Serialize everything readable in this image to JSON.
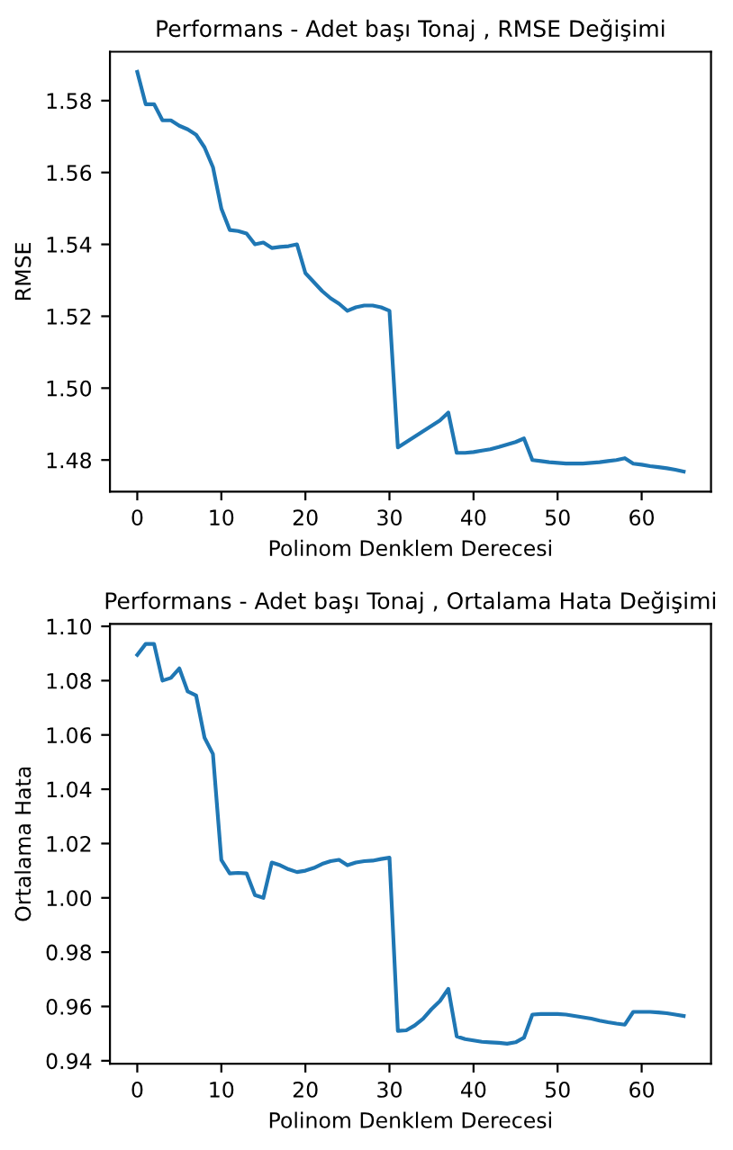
{
  "chart_data": [
    {
      "type": "line",
      "title": "Performans - Adet başı Tonaj , RMSE Değişimi",
      "xlabel": "Polinom Denklem Derecesi",
      "ylabel": "RMSE",
      "x": [
        0,
        1,
        2,
        3,
        4,
        5,
        6,
        7,
        8,
        9,
        10,
        11,
        12,
        13,
        14,
        15,
        16,
        17,
        18,
        19,
        20,
        21,
        22,
        23,
        24,
        25,
        26,
        27,
        28,
        29,
        30,
        31,
        32,
        33,
        34,
        35,
        36,
        37,
        38,
        39,
        40,
        41,
        42,
        43,
        44,
        45,
        46,
        47,
        48,
        49,
        50,
        51,
        52,
        53,
        54,
        55,
        56,
        57,
        58,
        59,
        60,
        61,
        62,
        63,
        64,
        65
      ],
      "series": [
        {
          "color": "#1f77b4",
          "values": [
            1.588,
            1.579,
            1.579,
            1.5745,
            1.5745,
            1.573,
            1.572,
            1.5705,
            1.567,
            1.5615,
            1.55,
            1.544,
            1.5437,
            1.543,
            1.54,
            1.5405,
            1.539,
            1.5393,
            1.5395,
            1.54,
            1.532,
            1.5295,
            1.527,
            1.525,
            1.5235,
            1.5215,
            1.5225,
            1.523,
            1.523,
            1.5225,
            1.5215,
            1.4835,
            1.485,
            1.4865,
            1.488,
            1.4895,
            1.491,
            1.4932,
            1.482,
            1.482,
            1.4822,
            1.4826,
            1.483,
            1.4836,
            1.4843,
            1.485,
            1.486,
            1.48,
            1.4797,
            1.4794,
            1.4792,
            1.479,
            1.479,
            1.479,
            1.4792,
            1.4794,
            1.4797,
            1.48,
            1.4805,
            1.479,
            1.4787,
            1.4783,
            1.478,
            1.4777,
            1.4773,
            1.4768
          ]
        }
      ],
      "xlim": [
        -3.25,
        68.25
      ],
      "xticks": [
        0,
        10,
        20,
        30,
        40,
        50,
        60
      ],
      "ylim": [
        1.4712,
        1.5936
      ],
      "yticks": [
        {
          "value": 1.48,
          "label": "1.48"
        },
        {
          "value": 1.5,
          "label": "1.50"
        },
        {
          "value": 1.52,
          "label": "1.52"
        },
        {
          "value": 1.54,
          "label": "1.54"
        },
        {
          "value": 1.56,
          "label": "1.56"
        },
        {
          "value": 1.58,
          "label": "1.58"
        }
      ],
      "grid": false,
      "legend": false
    },
    {
      "type": "line",
      "title": "Performans - Adet başı Tonaj , Ortalama Hata Değişimi",
      "xlabel": "Polinom Denklem Derecesi",
      "ylabel": "Ortalama Hata",
      "x": [
        0,
        1,
        2,
        3,
        4,
        5,
        6,
        7,
        8,
        9,
        10,
        11,
        12,
        13,
        14,
        15,
        16,
        17,
        18,
        19,
        20,
        21,
        22,
        23,
        24,
        25,
        26,
        27,
        28,
        29,
        30,
        31,
        32,
        33,
        34,
        35,
        36,
        37,
        38,
        39,
        40,
        41,
        42,
        43,
        44,
        45,
        46,
        47,
        48,
        49,
        50,
        51,
        52,
        53,
        54,
        55,
        56,
        57,
        58,
        59,
        60,
        61,
        62,
        63,
        64,
        65
      ],
      "series": [
        {
          "color": "#1f77b4",
          "values": [
            1.0895,
            1.0935,
            1.0935,
            1.08,
            1.081,
            1.0845,
            1.076,
            1.0745,
            1.059,
            1.053,
            1.014,
            1.009,
            1.0092,
            1.009,
            1.001,
            1.0,
            1.013,
            1.012,
            1.0105,
            1.0095,
            1.01,
            1.011,
            1.0125,
            1.0135,
            1.014,
            1.012,
            1.013,
            1.0135,
            1.0137,
            1.0143,
            1.0148,
            0.951,
            0.9512,
            0.953,
            0.9555,
            0.959,
            0.962,
            0.9665,
            0.949,
            0.948,
            0.9475,
            0.947,
            0.9468,
            0.9466,
            0.9463,
            0.9468,
            0.9485,
            0.957,
            0.9572,
            0.9572,
            0.9572,
            0.957,
            0.9565,
            0.956,
            0.9555,
            0.9548,
            0.9542,
            0.9537,
            0.9533,
            0.958,
            0.958,
            0.958,
            0.9578,
            0.9575,
            0.957,
            0.9565
          ]
        }
      ],
      "xlim": [
        -3.25,
        68.25
      ],
      "xticks": [
        0,
        10,
        20,
        30,
        40,
        50,
        60
      ],
      "ylim": [
        0.9389,
        1.1009
      ],
      "yticks": [
        {
          "value": 0.94,
          "label": "0.94"
        },
        {
          "value": 0.96,
          "label": "0.96"
        },
        {
          "value": 0.98,
          "label": "0.98"
        },
        {
          "value": 1.0,
          "label": "1.00"
        },
        {
          "value": 1.02,
          "label": "1.02"
        },
        {
          "value": 1.04,
          "label": "1.04"
        },
        {
          "value": 1.06,
          "label": "1.06"
        },
        {
          "value": 1.08,
          "label": "1.08"
        },
        {
          "value": 1.1,
          "label": "1.10"
        }
      ],
      "grid": false,
      "legend": false
    }
  ]
}
